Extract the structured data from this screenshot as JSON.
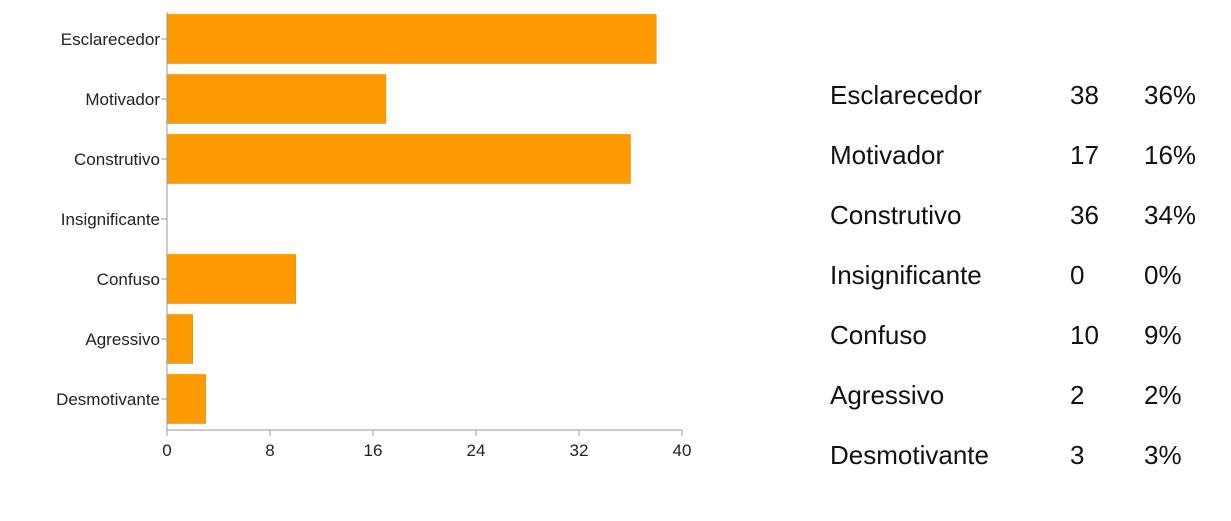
{
  "chart_data": {
    "type": "bar",
    "orientation": "horizontal",
    "categories": [
      "Esclarecedor",
      "Motivador",
      "Construtivo",
      "Insignificante",
      "Confuso",
      "Agressivo",
      "Desmotivante"
    ],
    "values": [
      38,
      17,
      36,
      0,
      10,
      2,
      3
    ],
    "xlim": [
      0,
      40
    ],
    "xticks": [
      "0",
      "8",
      "16",
      "24",
      "32",
      "40"
    ],
    "grid": false,
    "bar_color": "#ff9900"
  },
  "summary_table": {
    "rows": [
      {
        "label": "Esclarecedor",
        "count": "38",
        "percent": "36%"
      },
      {
        "label": "Motivador",
        "count": "17",
        "percent": "16%"
      },
      {
        "label": "Construtivo",
        "count": "36",
        "percent": "34%"
      },
      {
        "label": "Insignificante",
        "count": "0",
        "percent": "0%"
      },
      {
        "label": "Confuso",
        "count": "10",
        "percent": "9%"
      },
      {
        "label": "Agressivo",
        "count": "2",
        "percent": "2%"
      },
      {
        "label": "Desmotivante",
        "count": "3",
        "percent": "3%"
      }
    ]
  }
}
